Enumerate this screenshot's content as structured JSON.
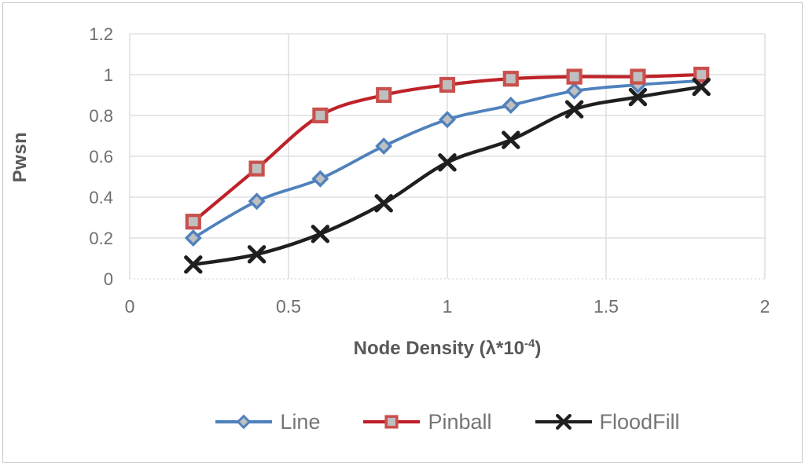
{
  "chart_data": {
    "type": "line",
    "title": "",
    "ylabel": "Pwsn",
    "xlabel": "Node Density (λ*10⁻⁴)",
    "xlabel_parts": {
      "prefix": "Node Density (λ*10",
      "superscript": "-4",
      "suffix": ")"
    },
    "x": [
      0.2,
      0.4,
      0.6,
      0.8,
      1.0,
      1.2,
      1.4,
      1.6,
      1.8
    ],
    "series": [
      {
        "name": "Line",
        "marker": "diamond",
        "line_color": "#4f81bd",
        "marker_stroke": "#4f81bd",
        "marker_fill": "#bfbfbf",
        "values": [
          0.2,
          0.38,
          0.49,
          0.65,
          0.78,
          0.85,
          0.92,
          0.95,
          0.97
        ]
      },
      {
        "name": "Pinball",
        "marker": "square",
        "line_color": "#be2228",
        "marker_stroke": "#c9504d",
        "marker_fill": "#bfbfbf",
        "values": [
          0.28,
          0.54,
          0.8,
          0.9,
          0.95,
          0.98,
          0.99,
          0.99,
          1.0
        ]
      },
      {
        "name": "FloodFill",
        "marker": "x",
        "line_color": "#1f1f1f",
        "marker_stroke": "#1f1f1f",
        "marker_fill": "#1f1f1f",
        "values": [
          0.07,
          0.12,
          0.22,
          0.37,
          0.57,
          0.68,
          0.83,
          0.89,
          0.94
        ]
      }
    ],
    "xlim": [
      0,
      2
    ],
    "ylim": [
      0,
      1.2
    ],
    "x_ticks": [
      "0",
      "0.5",
      "1",
      "1.5",
      "2"
    ],
    "x_tick_values": [
      0,
      0.5,
      1,
      1.5,
      2
    ],
    "y_ticks": [
      "0",
      "0.2",
      "0.4",
      "0.6",
      "0.8",
      "1",
      "1.2"
    ],
    "y_tick_values": [
      0,
      0.2,
      0.4,
      0.6,
      0.8,
      1,
      1.2
    ],
    "grid": true,
    "legend_position": "bottom",
    "colors": {
      "axis_text": "#6e6e6e",
      "title_text": "#595959",
      "legend_text": "#757575",
      "gridline": "#d9d9d9",
      "zero_line": "#d9d9d9",
      "background": "#ffffff",
      "frame_border": "#c9c9c9"
    }
  }
}
